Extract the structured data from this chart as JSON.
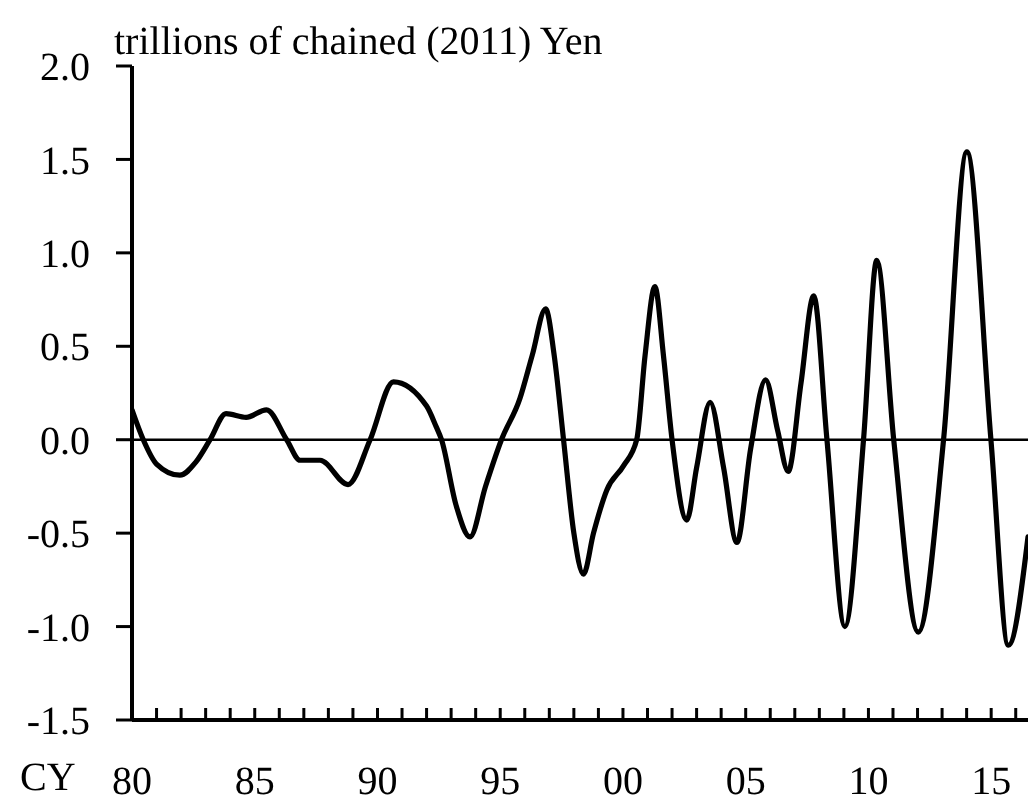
{
  "chart_data": {
    "type": "line",
    "ylabel": "trillions of chained (2011) Yen",
    "xlabel": "CY",
    "line_style": "solid",
    "x": [
      1980.0,
      1980.46,
      1981.0,
      1981.95,
      1982.6,
      1983.18,
      1983.83,
      1984.65,
      1985.48,
      1986.3,
      1986.85,
      1987.66,
      1988.8,
      1989.7,
      1990.65,
      1992.0,
      1992.39,
      1992.61,
      1993.2,
      1993.77,
      1994.4,
      1995.05,
      1995.8,
      1996.3,
      1996.85,
      1997.2,
      1997.58,
      1998.0,
      1998.39,
      1998.8,
      1999.34,
      2000.02,
      2000.56,
      2000.9,
      2001.3,
      2001.65,
      2002.0,
      2002.6,
      2003.0,
      2003.55,
      2004.1,
      2004.64,
      2005.2,
      2005.81,
      2006.3,
      2006.73,
      2007.25,
      2007.77,
      2008.31,
      2009.04,
      2009.8,
      2010.34,
      2011.03,
      2012.03,
      2013.06,
      2014.01,
      2014.99,
      2015.7,
      2016.5
    ],
    "series": [
      {
        "color": "#000000",
        "values": [
          0.16,
          0.0,
          -0.13,
          -0.19,
          -0.12,
          0.0,
          0.14,
          0.12,
          0.16,
          0.0,
          -0.11,
          -0.11,
          -0.24,
          0.0,
          0.31,
          0.18,
          0.07,
          0.0,
          -0.35,
          -0.52,
          -0.25,
          0.0,
          0.22,
          0.45,
          0.7,
          0.45,
          0.0,
          -0.5,
          -0.72,
          -0.5,
          -0.27,
          -0.14,
          0.0,
          0.45,
          0.82,
          0.45,
          0.0,
          -0.43,
          -0.15,
          0.2,
          -0.15,
          -0.55,
          -0.05,
          0.32,
          0.05,
          -0.17,
          0.3,
          0.77,
          0.0,
          -1.0,
          0.0,
          0.96,
          0.0,
          -1.03,
          0.0,
          1.54,
          0.0,
          -1.1,
          -0.52
        ]
      }
    ],
    "xlim": [
      1980,
      2016.5
    ],
    "xticks": [
      {
        "value": 1980,
        "label": "80"
      },
      {
        "value": 1981,
        "label": null
      },
      {
        "value": 1982,
        "label": null
      },
      {
        "value": 1983,
        "label": null
      },
      {
        "value": 1984,
        "label": null
      },
      {
        "value": 1985,
        "label": "85"
      },
      {
        "value": 1986,
        "label": null
      },
      {
        "value": 1987,
        "label": null
      },
      {
        "value": 1988,
        "label": null
      },
      {
        "value": 1989,
        "label": null
      },
      {
        "value": 1990,
        "label": "90"
      },
      {
        "value": 1991,
        "label": null
      },
      {
        "value": 1992,
        "label": null
      },
      {
        "value": 1993,
        "label": null
      },
      {
        "value": 1994,
        "label": null
      },
      {
        "value": 1995,
        "label": "95"
      },
      {
        "value": 1996,
        "label": null
      },
      {
        "value": 1997,
        "label": null
      },
      {
        "value": 1998,
        "label": null
      },
      {
        "value": 1999,
        "label": null
      },
      {
        "value": 2000,
        "label": "00"
      },
      {
        "value": 2001,
        "label": null
      },
      {
        "value": 2002,
        "label": null
      },
      {
        "value": 2003,
        "label": null
      },
      {
        "value": 2004,
        "label": null
      },
      {
        "value": 2005,
        "label": "05"
      },
      {
        "value": 2006,
        "label": null
      },
      {
        "value": 2007,
        "label": null
      },
      {
        "value": 2008,
        "label": null
      },
      {
        "value": 2009,
        "label": null
      },
      {
        "value": 2010,
        "label": "10"
      },
      {
        "value": 2011,
        "label": null
      },
      {
        "value": 2012,
        "label": null
      },
      {
        "value": 2013,
        "label": null
      },
      {
        "value": 2014,
        "label": null
      },
      {
        "value": 2015,
        "label": "15"
      },
      {
        "value": 2016,
        "label": null
      }
    ],
    "ylim": [
      -1.5,
      2.0
    ],
    "yticks": [
      -1.5,
      {
        "value": -1,
        "label": "-1.0"
      },
      -0.5,
      {
        "value": 0,
        "label": "0.0"
      },
      0.5,
      {
        "value": 1,
        "label": "1.0"
      },
      1.5,
      {
        "value": 2,
        "label": "2.0"
      }
    ],
    "ref_lines": [
      {
        "axis": "y",
        "value": 0,
        "color": "#000000"
      }
    ]
  }
}
